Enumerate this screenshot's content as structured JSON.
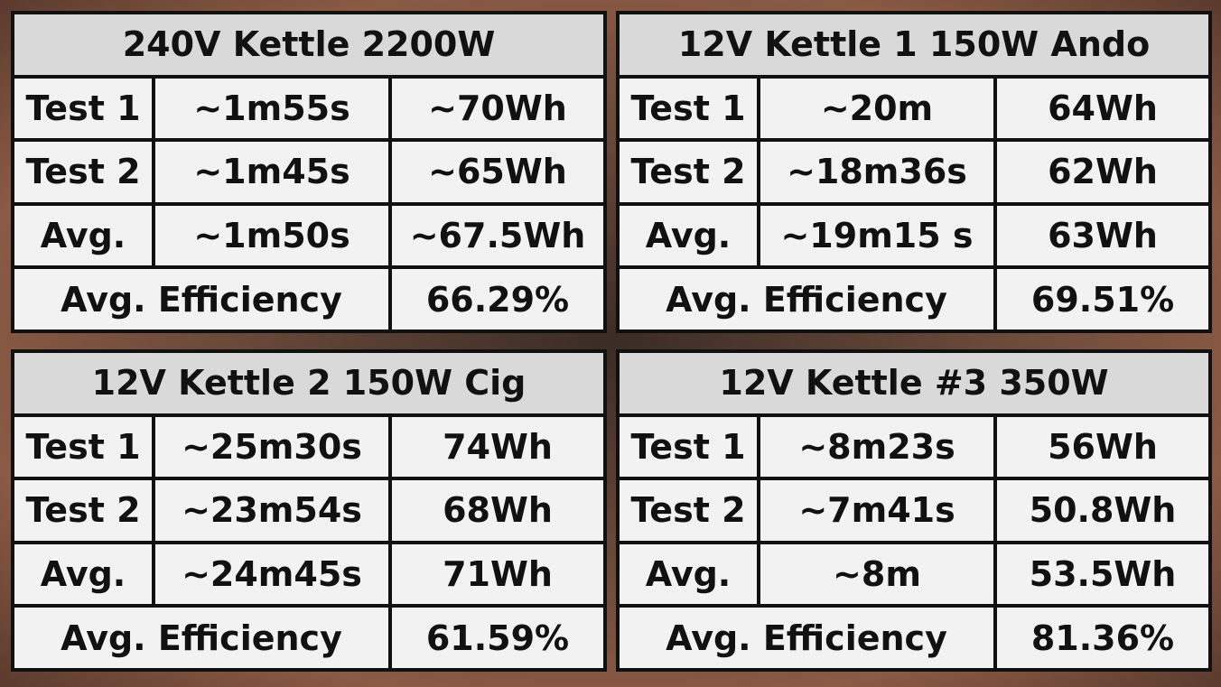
{
  "tables": [
    {
      "title": "240V Kettle 2200W",
      "rows": [
        [
          "Test 1",
          "~1m55s",
          "~70Wh"
        ],
        [
          "Test 2",
          "~1m45s",
          "~65Wh"
        ],
        [
          "Avg.",
          "~1m50s",
          "~67.5Wh"
        ]
      ],
      "efficiency": {
        "label": "Avg. Efficiency",
        "value": "66.29%"
      }
    },
    {
      "title": "12V Kettle 1 150W Ando",
      "rows": [
        [
          "Test 1",
          "~20m",
          "64Wh"
        ],
        [
          "Test 2",
          "~18m36s",
          "62Wh"
        ],
        [
          "Avg.",
          "~19m15 s",
          "63Wh"
        ]
      ],
      "efficiency": {
        "label": "Avg. Efficiency",
        "value": "69.51%"
      }
    },
    {
      "title": "12V Kettle 2 150W Cig",
      "rows": [
        [
          "Test 1",
          "~25m30s",
          "74Wh"
        ],
        [
          "Test 2",
          "~23m54s",
          "68Wh"
        ],
        [
          "Avg.",
          "~24m45s",
          "71Wh"
        ]
      ],
      "efficiency": {
        "label": "Avg. Efficiency",
        "value": "61.59%"
      }
    },
    {
      "title": "12V Kettle #3 350W",
      "rows": [
        [
          "Test 1",
          "~8m23s",
          "56Wh"
        ],
        [
          "Test 2",
          "~7m41s",
          "50.8Wh"
        ],
        [
          "Avg.",
          "~8m",
          "53.5Wh"
        ]
      ],
      "efficiency": {
        "label": "Avg. Efficiency",
        "value": "81.36%"
      }
    }
  ]
}
